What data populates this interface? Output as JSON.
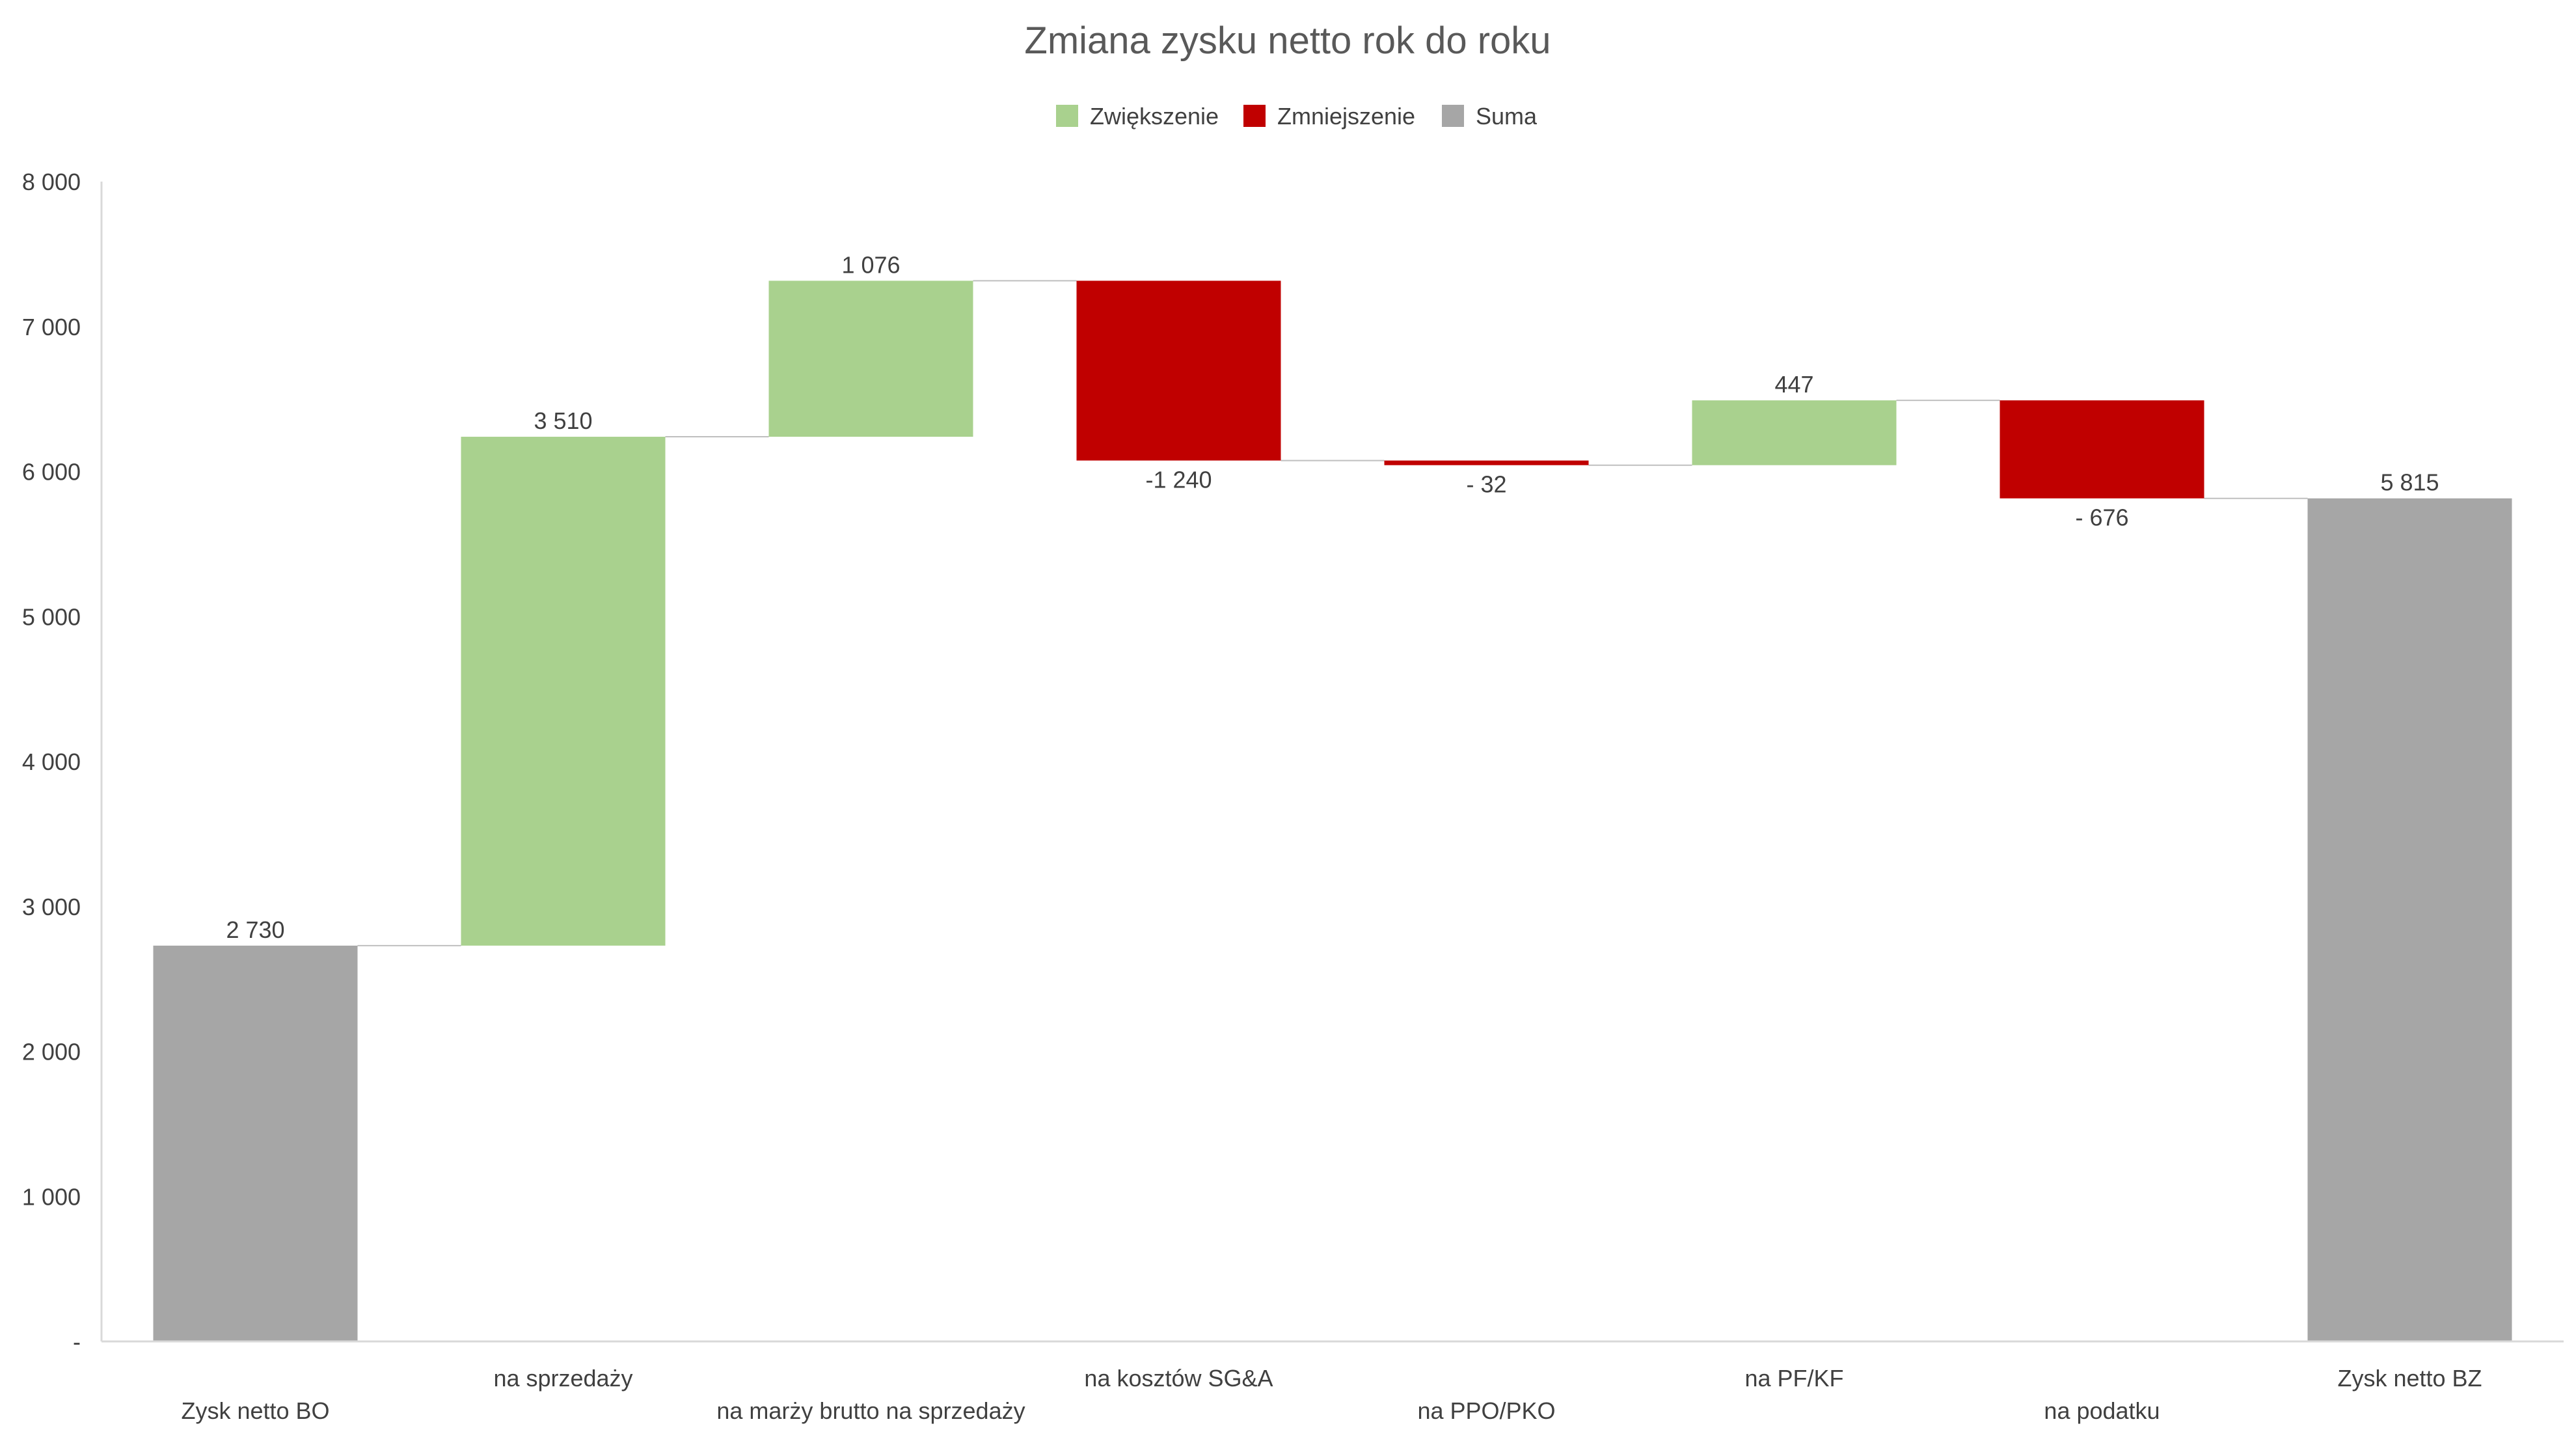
{
  "chart_data": {
    "type": "waterfall",
    "title": "Zmiana zysku netto rok do roku",
    "legend": [
      {
        "label": "Zwiększenie",
        "color": "#A9D18E"
      },
      {
        "label": "Zmniejszenie",
        "color": "#C00000"
      },
      {
        "label": "Suma",
        "color": "#A6A6A6"
      }
    ],
    "legend_position": "top",
    "ylim": [
      0,
      8000
    ],
    "y_ticks": [
      {
        "value": 0,
        "label": "-"
      },
      {
        "value": 1000,
        "label": "1 000"
      },
      {
        "value": 2000,
        "label": "2 000"
      },
      {
        "value": 3000,
        "label": "3 000"
      },
      {
        "value": 4000,
        "label": "4 000"
      },
      {
        "value": 5000,
        "label": "5 000"
      },
      {
        "value": 6000,
        "label": "6 000"
      },
      {
        "value": 7000,
        "label": "7 000"
      },
      {
        "value": 8000,
        "label": "8 000"
      }
    ],
    "grid": false,
    "points": [
      {
        "category": "Zysk netto BO",
        "value": 2730,
        "kind": "total",
        "label": "2 730"
      },
      {
        "category": "na sprzedaży",
        "value": 3510,
        "kind": "increase",
        "label": "3 510"
      },
      {
        "category": "na marży brutto na sprzedaży",
        "value": 1076,
        "kind": "increase",
        "label": "1 076"
      },
      {
        "category": "na kosztów SG&A",
        "value": -1240,
        "kind": "decrease",
        "label": "-1 240"
      },
      {
        "category": "na PPO/PKO",
        "value": -32,
        "kind": "decrease",
        "label": "- 32"
      },
      {
        "category": "na PF/KF",
        "value": 447,
        "kind": "increase",
        "label": "447"
      },
      {
        "category": "na podatku",
        "value": -676,
        "kind": "decrease",
        "label": "- 676"
      },
      {
        "category": "Zysk netto BZ",
        "value": 5815,
        "kind": "total",
        "label": "5 815"
      }
    ]
  }
}
